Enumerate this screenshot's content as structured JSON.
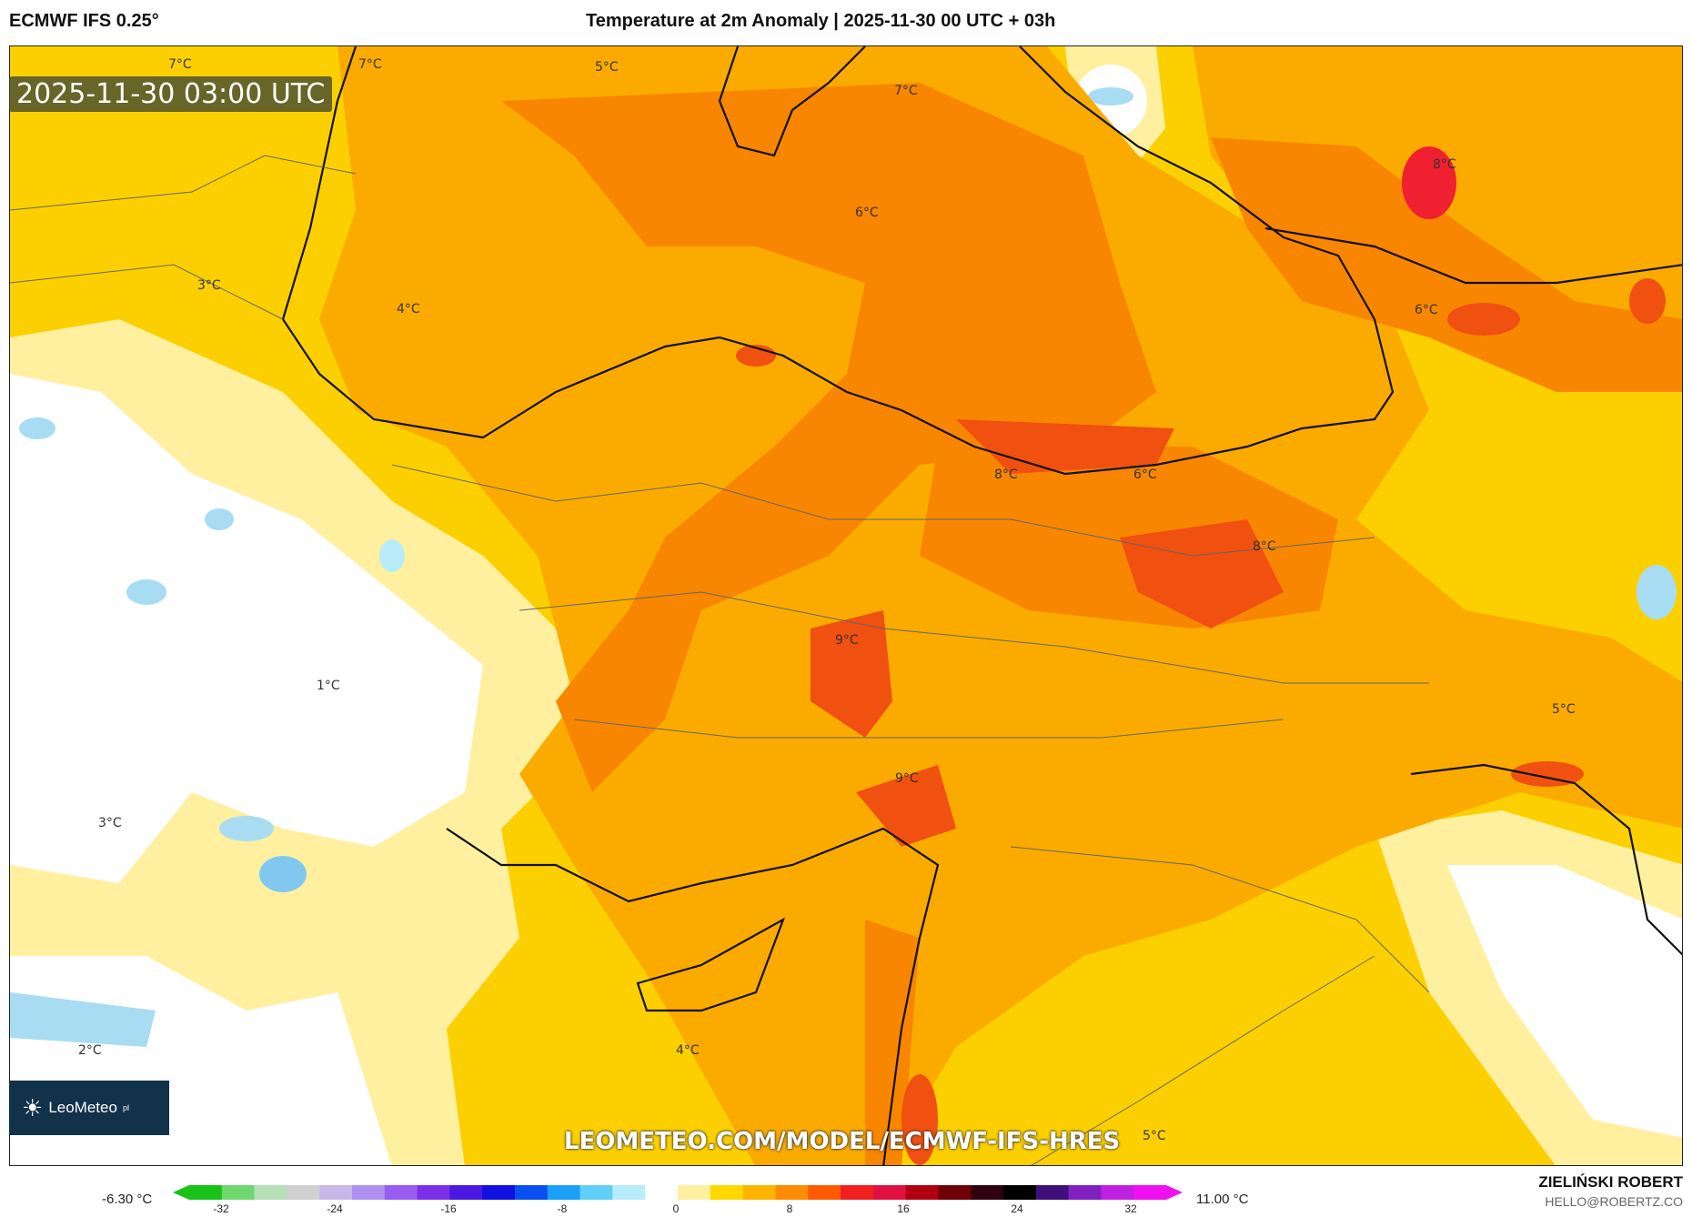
{
  "header": {
    "model": "ECMWF IFS 0.25°",
    "title": "Temperature at 2m Anomaly | 2025-11-30 00 UTC + 03h"
  },
  "map": {
    "valid_time": "2025-11-30 03:00 UTC",
    "watermark": "LEOMETEO.COM/MODEL/ECMWF-IFS-HRES",
    "logo_text": "LeoMeteo",
    "logo_suffix": "pl",
    "labels": [
      "7°C",
      "7°C",
      "5°C",
      "7°C",
      "8°C",
      "6°C",
      "3°C",
      "4°C",
      "6°C",
      "8°C",
      "6°C",
      "8°C",
      "9°C",
      "1°C",
      "5°C",
      "9°C",
      "3°C",
      "2°C",
      "4°C",
      "5°C"
    ]
  },
  "colorbar": {
    "min_label": "-6.30 °C",
    "max_label": "11.00 °C",
    "ticks": [
      "-32",
      "-24",
      "-16",
      "-8",
      "0",
      "8",
      "16",
      "24",
      "32"
    ],
    "colors": [
      "#19c219",
      "#6ed86e",
      "#b8e0b8",
      "#d0d0d0",
      "#c8b8e8",
      "#b090f0",
      "#9a5cf0",
      "#7d2ee8",
      "#4a18e0",
      "#1010e0",
      "#0a50f0",
      "#1aa0f8",
      "#60d0f8",
      "#b8ecfa",
      "#ffffff",
      "#fff0a0",
      "#ffd800",
      "#ffb400",
      "#ff8c00",
      "#ff5a00",
      "#f02020",
      "#e01040",
      "#b00010",
      "#700008",
      "#300010",
      "#000000",
      "#40107a",
      "#8020c0",
      "#c020e0",
      "#f010f0"
    ]
  },
  "footer": {
    "author": "ZIELIŃSKI ROBERT",
    "email": "HELLO@ROBERTZ.CO"
  }
}
